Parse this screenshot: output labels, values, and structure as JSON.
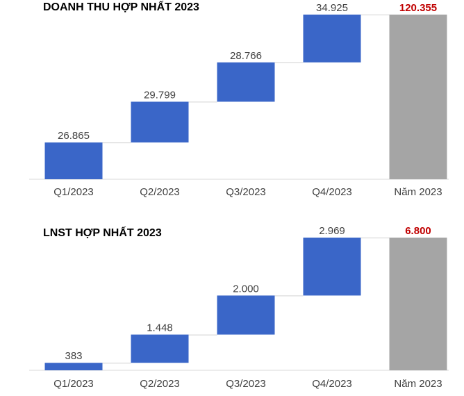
{
  "chart_data": [
    {
      "type": "bar",
      "subtype": "waterfall",
      "title": "DOANH THU HỢP NHẤT 2023",
      "categories": [
        "Q1/2023",
        "Q2/2023",
        "Q3/2023",
        "Q4/2023",
        "Năm 2023"
      ],
      "values": [
        26.865,
        29.799,
        28.766,
        34.925,
        120.355
      ],
      "labels": [
        "26.865",
        "29.799",
        "28.766",
        "34.925",
        "120.355"
      ],
      "total_index": 4,
      "colors": {
        "increment": "#3a66c8",
        "total": "#a5a5a5",
        "total_label": "#c00000",
        "connector": "#d0d0d0"
      }
    },
    {
      "type": "bar",
      "subtype": "waterfall",
      "title": "LNST HỢP NHẤT 2023",
      "categories": [
        "Q1/2023",
        "Q2/2023",
        "Q3/2023",
        "Q4/2023",
        "Năm 2023"
      ],
      "values": [
        383,
        1448,
        2000,
        2969,
        6800
      ],
      "labels": [
        "383",
        "1.448",
        "2.000",
        "2.969",
        "6.800"
      ],
      "total_index": 4,
      "colors": {
        "increment": "#3a66c8",
        "total": "#a5a5a5",
        "total_label": "#c00000",
        "connector": "#d0d0d0"
      }
    }
  ]
}
